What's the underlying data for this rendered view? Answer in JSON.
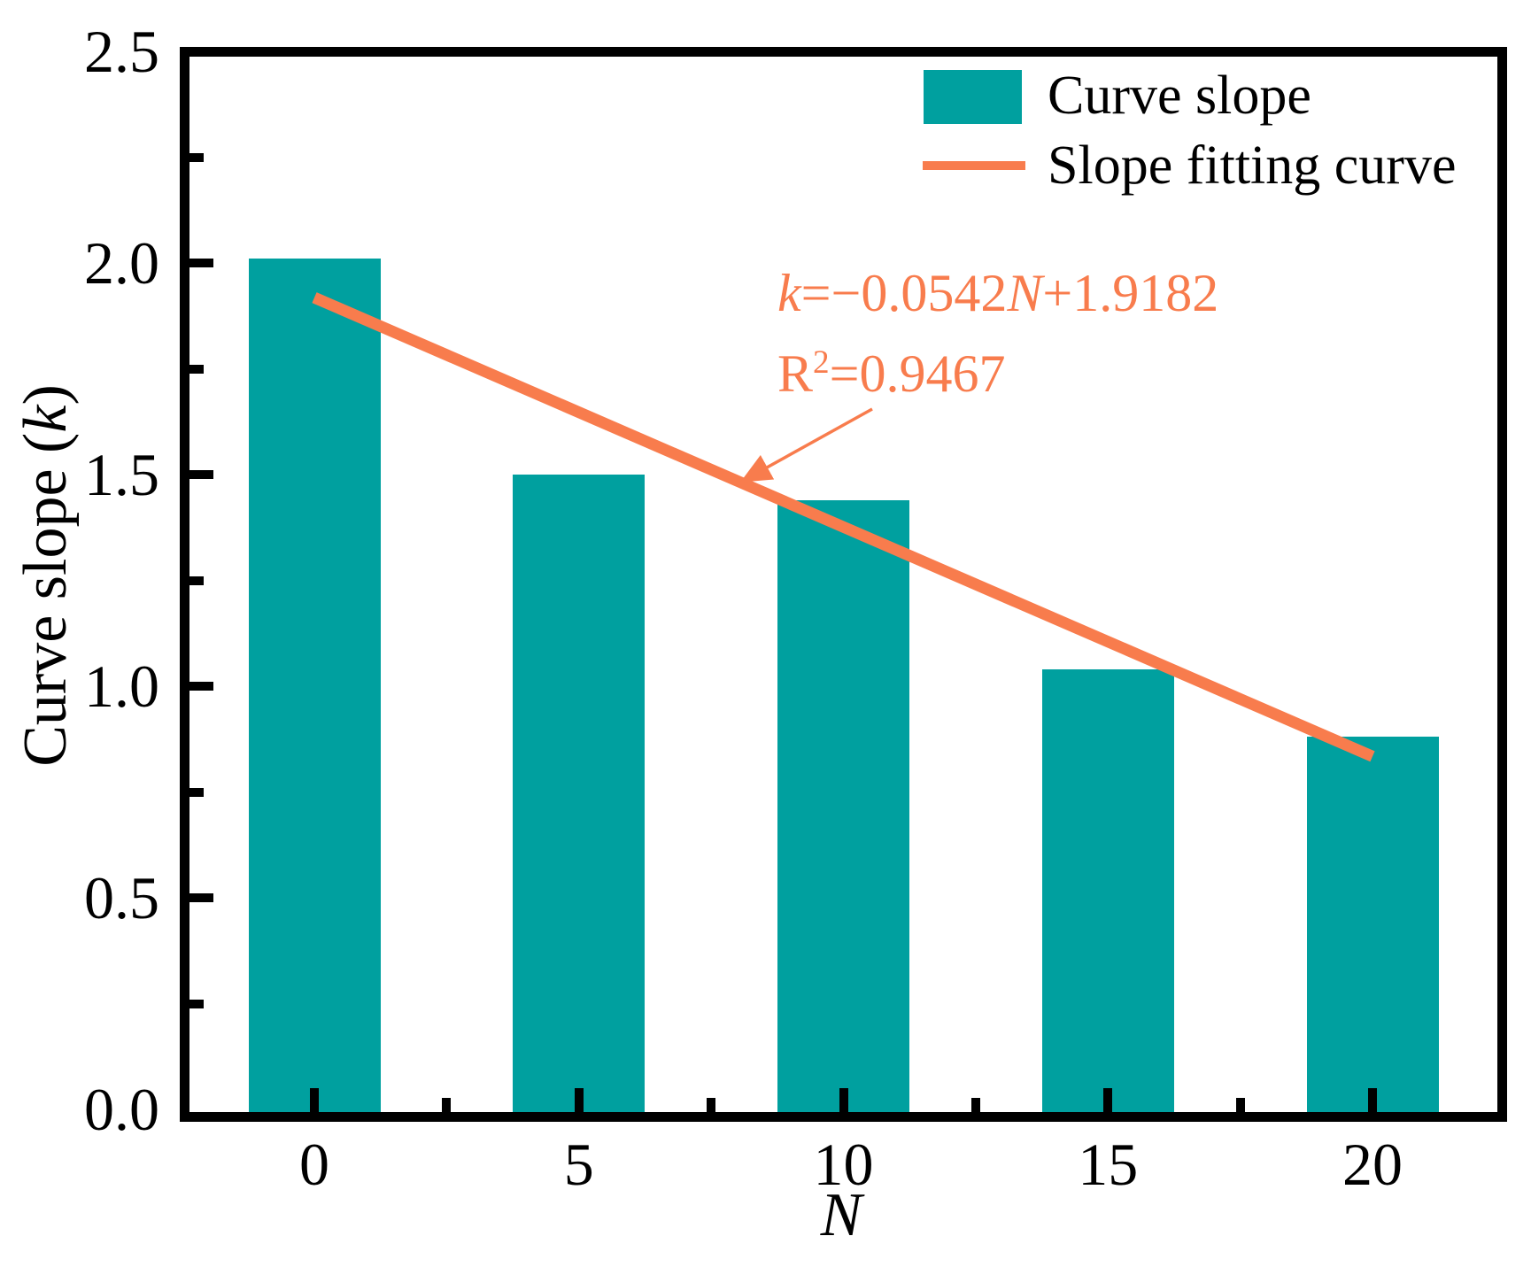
{
  "chart_data": {
    "type": "bar",
    "title": "",
    "xlabel": "N",
    "ylabel": "Curve slope (k)",
    "categories": [
      0,
      5,
      10,
      15,
      20
    ],
    "series": [
      {
        "name": "Curve slope",
        "type": "bar",
        "values": [
          2.01,
          1.5,
          1.44,
          1.04,
          0.88
        ],
        "color": "#00A09F"
      },
      {
        "name": "Slope fitting curve",
        "type": "line",
        "slope": -0.0542,
        "intercept": 1.9182,
        "r_squared": 0.9467,
        "x_start": 0,
        "x_end": 20,
        "color": "#F87C4D"
      }
    ],
    "xlim": [
      -2.36,
      22.36
    ],
    "ylim": [
      0,
      2.5
    ],
    "xticks": [
      0,
      5,
      10,
      15,
      20
    ],
    "x_minor_ticks": [
      2.5,
      7.5,
      12.5,
      17.5
    ],
    "yticks": [
      0,
      0.5,
      1,
      1.5,
      2,
      2.5
    ],
    "y_minor_ticks": [
      0.25,
      0.75,
      1.25,
      1.75,
      2.25
    ],
    "x_tick_labels": [
      "0",
      "5",
      "10",
      "15",
      "20"
    ],
    "y_tick_labels": [
      "0.0",
      "0.5",
      "1.0",
      "1.5",
      "2.0",
      "2.5"
    ],
    "grid": false,
    "legend_position": "top-right",
    "annotation_text": "k=−0.0542N+1.9182  R2=0.9467"
  },
  "colors": {
    "bar": "#00A09F",
    "line": "#F87C4D",
    "axis": "#000000",
    "background": "#FFFFFF"
  },
  "legend": {
    "bar_label": "Curve slope",
    "line_label": "Slope fitting curve"
  },
  "annotation": {
    "eq_k": "k",
    "eq_mid": "=−0.0542",
    "eq_N": "N",
    "eq_tail": "+1.9182",
    "r2_base": "R",
    "r2_sup": "2",
    "r2_rest": "=0.9467"
  },
  "axis_labels": {
    "x": "N",
    "y_prefix": "Curve slope (",
    "y_var": "k",
    "y_suffix": ")"
  }
}
